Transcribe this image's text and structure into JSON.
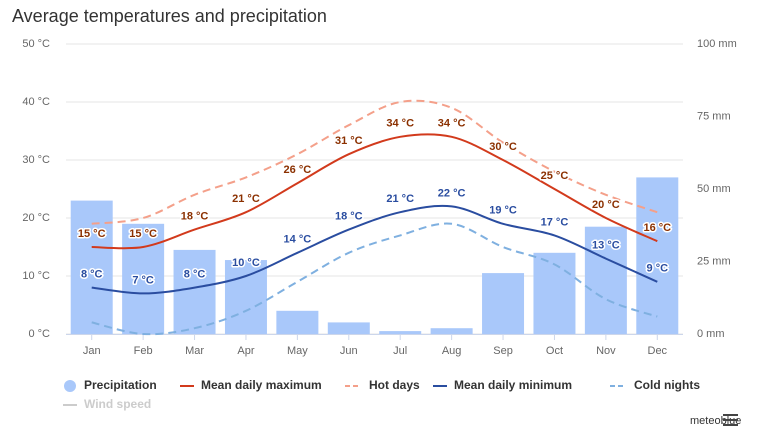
{
  "chart_data": {
    "type": "combo",
    "title": "Average temperatures and precipitation",
    "credit": "meteoblue",
    "categories": [
      "Jan",
      "Feb",
      "Mar",
      "Apr",
      "May",
      "Jun",
      "Jul",
      "Aug",
      "Sep",
      "Oct",
      "Nov",
      "Dec"
    ],
    "ylim": [
      0,
      50
    ],
    "yticks": [
      {
        "value": 0,
        "label": "0 °C"
      },
      {
        "value": 10,
        "label": "10 °C"
      },
      {
        "value": 20,
        "label": "20 °C"
      },
      {
        "value": 30,
        "label": "30 °C"
      },
      {
        "value": 40,
        "label": "40 °C"
      },
      {
        "value": 50,
        "label": "50 °C"
      }
    ],
    "y2lim": [
      0,
      100
    ],
    "y2ticks": [
      {
        "value": 0,
        "label": "0 mm"
      },
      {
        "value": 25,
        "label": "25 mm"
      },
      {
        "value": 50,
        "label": "50 mm"
      },
      {
        "value": 75,
        "label": "75 mm"
      },
      {
        "value": 100,
        "label": "100 mm"
      }
    ],
    "grid": true,
    "series": [
      {
        "name": "Precipitation",
        "type": "bar",
        "axis": "y2",
        "color": "#a9c8fa",
        "values": [
          46,
          38,
          29,
          25.5,
          8,
          4,
          1,
          2,
          21,
          28,
          37,
          54
        ]
      },
      {
        "name": "Mean daily maximum",
        "type": "line",
        "color": "#d23a1c",
        "label_color": "#8b3000",
        "values": [
          15,
          15,
          18,
          21,
          26,
          31,
          34,
          34,
          30,
          25,
          20,
          16
        ],
        "value_labels": [
          "15 °C",
          "15 °C",
          "18 °C",
          "21 °C",
          "26 °C",
          "31 °C",
          "34 °C",
          "34 °C",
          "30 °C",
          "25 °C",
          "20 °C",
          "16 °C"
        ]
      },
      {
        "name": "Hot days",
        "type": "line",
        "dashed": true,
        "color": "#f4a08a",
        "values": [
          19,
          20,
          24,
          27,
          31,
          36,
          40,
          39,
          33,
          28,
          24,
          21
        ]
      },
      {
        "name": "Mean daily minimum",
        "type": "line",
        "color": "#2a4da0",
        "label_color": "#2a4da0",
        "values": [
          8,
          7,
          8,
          10,
          14,
          18,
          21,
          22,
          19,
          17,
          13,
          9
        ],
        "value_labels": [
          "8 °C",
          "7 °C",
          "8 °C",
          "10 °C",
          "14 °C",
          "18 °C",
          "21 °C",
          "22 °C",
          "19 °C",
          "17 °C",
          "13 °C",
          "9 °C"
        ]
      },
      {
        "name": "Cold nights",
        "type": "line",
        "dashed": true,
        "color": "#7fb0e0",
        "values": [
          2,
          0,
          1,
          4,
          9,
          14,
          17,
          19,
          15,
          12,
          6,
          3
        ]
      },
      {
        "name": "Wind speed",
        "type": "line",
        "visible": false,
        "color": "#cccccc"
      }
    ]
  }
}
